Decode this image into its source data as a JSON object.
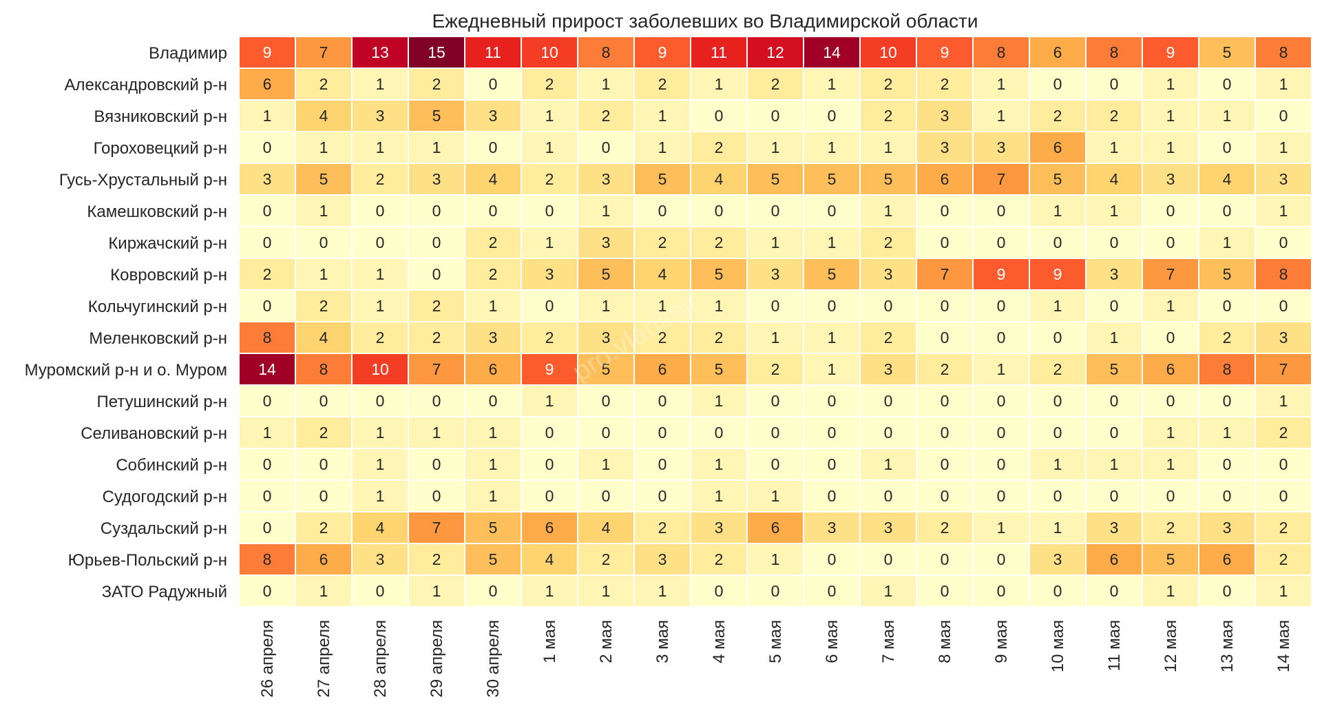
{
  "chart_data": {
    "type": "heatmap",
    "title": "Ежедневный прирост заболевших во Владимирской области",
    "watermark": "pro.vladimir",
    "colormap": "YlOrRd",
    "vmin": 0,
    "vmax": 15,
    "colors": {
      "low": "#ffffcc",
      "high": "#800026",
      "grid": "#ffffff",
      "text_dark": "#262626",
      "text_light": "#ffffff"
    },
    "columns": [
      "26 апреля",
      "27 апреля",
      "28 апреля",
      "29 апреля",
      "30 апреля",
      "1 мая",
      "2 мая",
      "3 мая",
      "4 мая",
      "5 мая",
      "6 мая",
      "7 мая",
      "8 мая",
      "9 мая",
      "10 мая",
      "11 мая",
      "12 мая",
      "13 мая",
      "14 мая"
    ],
    "rows": [
      {
        "name": "Владимир",
        "values": [
          9,
          7,
          13,
          15,
          11,
          10,
          8,
          9,
          11,
          12,
          14,
          10,
          9,
          8,
          6,
          8,
          9,
          5,
          8
        ]
      },
      {
        "name": "Александровский р-н",
        "values": [
          6,
          2,
          1,
          2,
          0,
          2,
          1,
          2,
          1,
          2,
          1,
          2,
          2,
          1,
          0,
          0,
          1,
          0,
          1
        ]
      },
      {
        "name": "Вязниковский р-н",
        "values": [
          1,
          4,
          3,
          5,
          3,
          1,
          2,
          1,
          0,
          0,
          0,
          2,
          3,
          1,
          2,
          2,
          1,
          1,
          0
        ]
      },
      {
        "name": "Гороховецкий р-н",
        "values": [
          0,
          1,
          1,
          1,
          0,
          1,
          0,
          1,
          2,
          1,
          1,
          1,
          3,
          3,
          6,
          1,
          1,
          0,
          1
        ]
      },
      {
        "name": "Гусь-Хрустальный р-н",
        "values": [
          3,
          5,
          2,
          3,
          4,
          2,
          3,
          5,
          4,
          5,
          5,
          5,
          6,
          7,
          5,
          4,
          3,
          4,
          3
        ]
      },
      {
        "name": "Камешковский р-н",
        "values": [
          0,
          1,
          0,
          0,
          0,
          0,
          1,
          0,
          0,
          0,
          0,
          1,
          0,
          0,
          1,
          1,
          0,
          0,
          1
        ]
      },
      {
        "name": "Киржачский р-н",
        "values": [
          0,
          0,
          0,
          0,
          2,
          1,
          3,
          2,
          2,
          1,
          1,
          2,
          0,
          0,
          0,
          0,
          0,
          1,
          0
        ]
      },
      {
        "name": "Ковровский р-н",
        "values": [
          2,
          1,
          1,
          0,
          2,
          3,
          5,
          4,
          5,
          3,
          5,
          3,
          7,
          9,
          9,
          3,
          7,
          5,
          8
        ]
      },
      {
        "name": "Кольчугинский р-н",
        "values": [
          0,
          2,
          1,
          2,
          1,
          0,
          1,
          1,
          1,
          0,
          0,
          0,
          0,
          0,
          1,
          0,
          1,
          0,
          0
        ]
      },
      {
        "name": "Меленковский р-н",
        "values": [
          8,
          4,
          2,
          2,
          3,
          2,
          3,
          2,
          2,
          1,
          1,
          2,
          0,
          0,
          0,
          1,
          0,
          2,
          3
        ]
      },
      {
        "name": "Муромский р-н и о. Муром",
        "values": [
          14,
          8,
          10,
          7,
          6,
          9,
          5,
          6,
          5,
          2,
          1,
          3,
          2,
          1,
          2,
          5,
          6,
          8,
          7
        ]
      },
      {
        "name": "Петушинский р-н",
        "values": [
          0,
          0,
          0,
          0,
          0,
          1,
          0,
          0,
          1,
          0,
          0,
          0,
          0,
          0,
          0,
          0,
          0,
          0,
          1
        ]
      },
      {
        "name": "Селивановский р-н",
        "values": [
          1,
          2,
          1,
          1,
          1,
          0,
          0,
          0,
          0,
          0,
          0,
          0,
          0,
          0,
          0,
          0,
          1,
          1,
          2
        ]
      },
      {
        "name": "Собинский р-н",
        "values": [
          0,
          0,
          1,
          0,
          1,
          0,
          1,
          0,
          1,
          0,
          0,
          1,
          0,
          0,
          1,
          1,
          1,
          0,
          0
        ]
      },
      {
        "name": "Судогодский р-н",
        "values": [
          0,
          0,
          1,
          0,
          1,
          0,
          0,
          0,
          1,
          1,
          0,
          0,
          0,
          0,
          0,
          0,
          0,
          0,
          0
        ]
      },
      {
        "name": "Суздальский р-н",
        "values": [
          0,
          2,
          4,
          7,
          5,
          6,
          4,
          2,
          3,
          6,
          3,
          3,
          2,
          1,
          1,
          3,
          2,
          3,
          2
        ]
      },
      {
        "name": "Юрьев-Польский р-н",
        "values": [
          8,
          6,
          3,
          2,
          5,
          4,
          2,
          3,
          2,
          1,
          0,
          0,
          0,
          0,
          3,
          6,
          5,
          6,
          2
        ]
      },
      {
        "name": "ЗАТО Радужный",
        "values": [
          0,
          1,
          0,
          1,
          0,
          1,
          1,
          1,
          0,
          0,
          0,
          1,
          0,
          0,
          0,
          0,
          1,
          0,
          1
        ]
      }
    ]
  }
}
